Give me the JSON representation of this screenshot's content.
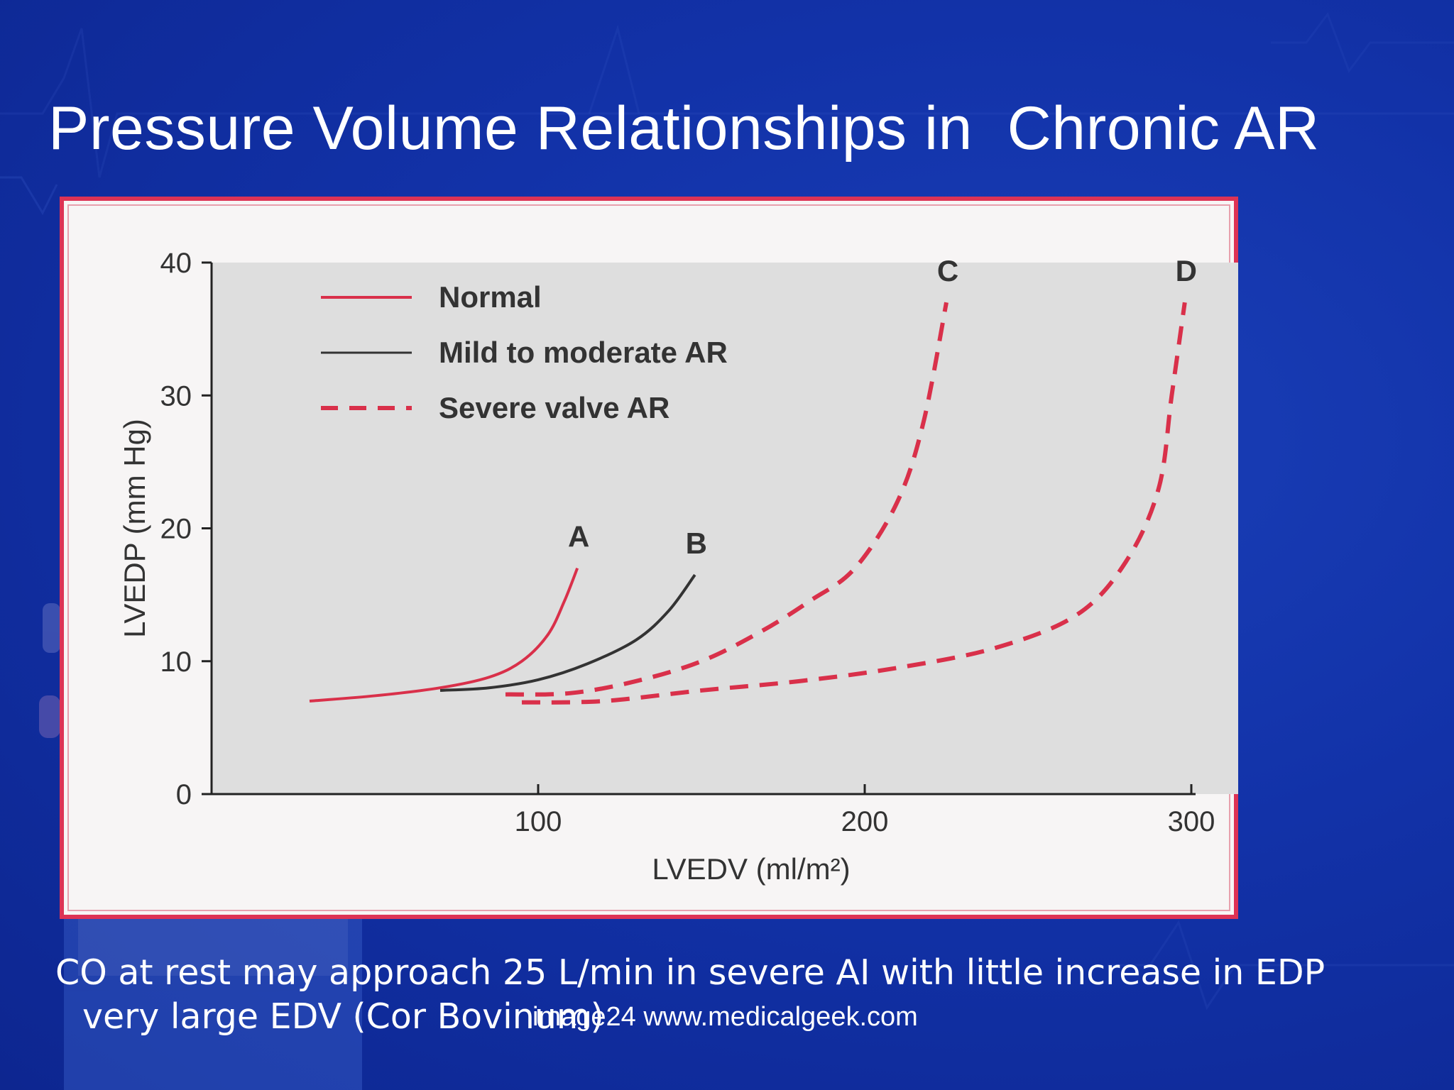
{
  "slide": {
    "title": "Pressure Volume Relationships in  Chronic AR",
    "caption_line1": "CO at rest may approach 25 L/min in severe AI with little increase in EDP",
    "caption_line2": "very large EDV (Cor Bovinum)",
    "watermark": "image24 www.medicalgeek.com"
  },
  "colors": {
    "background": "#1232a8",
    "normal": "#d9304a",
    "mild_to_moderate_ar": "#333333",
    "severe_valve_ar": "#d9304a",
    "plot_area": "#dedede",
    "frame_border": "#dd3355"
  },
  "chart_data": {
    "type": "line",
    "xlabel": "LVEDV (ml/m²)",
    "ylabel": "LVEDP (mm Hg)",
    "xlim": [
      0,
      300
    ],
    "ylim": [
      0,
      40
    ],
    "xticks": [
      100,
      200,
      300
    ],
    "yticks": [
      0,
      10,
      20,
      30,
      40
    ],
    "legend_position": "top-left",
    "series": [
      {
        "name": "Normal",
        "style": "solid",
        "color": "#d9304a",
        "label": "A",
        "points": [
          [
            30,
            7.0
          ],
          [
            50,
            7.4
          ],
          [
            70,
            8.0
          ],
          [
            85,
            8.8
          ],
          [
            95,
            10.0
          ],
          [
            103,
            12.0
          ],
          [
            108,
            14.5
          ],
          [
            112,
            17.0
          ]
        ]
      },
      {
        "name": "Mild to moderate AR",
        "style": "solid",
        "color": "#333333",
        "label": "B",
        "points": [
          [
            70,
            7.8
          ],
          [
            85,
            8.0
          ],
          [
            100,
            8.6
          ],
          [
            115,
            9.8
          ],
          [
            130,
            11.6
          ],
          [
            140,
            13.8
          ],
          [
            148,
            16.5
          ]
        ]
      },
      {
        "name": "Severe valve AR",
        "style": "dashed",
        "color": "#d9304a",
        "label": "C",
        "points": [
          [
            90,
            7.5
          ],
          [
            110,
            7.6
          ],
          [
            130,
            8.5
          ],
          [
            150,
            10.0
          ],
          [
            168,
            12.2
          ],
          [
            183,
            14.5
          ],
          [
            197,
            17.0
          ],
          [
            210,
            22.0
          ],
          [
            218,
            28.0
          ],
          [
            225,
            37.0
          ]
        ]
      },
      {
        "name": "",
        "style": "dashed",
        "color": "#d9304a",
        "label": "D",
        "points": [
          [
            95,
            6.9
          ],
          [
            120,
            7.0
          ],
          [
            150,
            7.8
          ],
          [
            180,
            8.5
          ],
          [
            210,
            9.5
          ],
          [
            240,
            11.0
          ],
          [
            265,
            13.5
          ],
          [
            280,
            17.5
          ],
          [
            290,
            23.0
          ],
          [
            294,
            30.0
          ],
          [
            298,
            37.0
          ]
        ]
      }
    ],
    "legend": [
      "Normal",
      "Mild to moderate AR",
      "Severe valve AR"
    ]
  }
}
